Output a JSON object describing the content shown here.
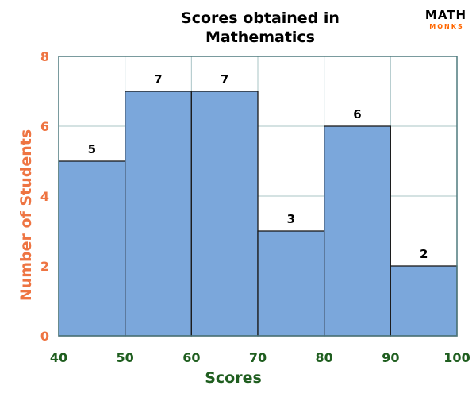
{
  "logo": {
    "main": "MATH",
    "sub": "MONKS"
  },
  "colors": {
    "bar_fill": "#7ba7db",
    "bar_stroke": "#1a1a1a",
    "grid": "#a9c4c6",
    "frame": "#4f7a7e",
    "ylabel_color": "#ee7442",
    "xlabel_color": "#1f5e1f",
    "ytick_color": "#ee7442",
    "xtick_color": "#1f5e1f"
  },
  "chart_data": {
    "type": "bar",
    "title_lines": [
      "Scores obtained in",
      "Mathematics"
    ],
    "categories": [
      "40-50",
      "50-60",
      "60-70",
      "70-80",
      "80-90",
      "90-100"
    ],
    "bin_edges": [
      40,
      50,
      60,
      70,
      80,
      90,
      100
    ],
    "values": [
      5,
      7,
      7,
      3,
      6,
      2
    ],
    "value_labels": [
      "5",
      "7",
      "7",
      "3",
      "6",
      "2"
    ],
    "xlabel": "Scores",
    "ylabel": "Number of Students",
    "xlim": [
      40,
      100
    ],
    "ylim": [
      0,
      8
    ],
    "xticks": [
      40,
      50,
      60,
      70,
      80,
      90,
      100
    ],
    "xtick_labels": [
      "40",
      "50",
      "60",
      "70",
      "80",
      "90",
      "100"
    ],
    "yticks": [
      0,
      2,
      4,
      6,
      8
    ],
    "ytick_labels": [
      "0",
      "2",
      "4",
      "6",
      "8"
    ],
    "grid": true,
    "legend": "none"
  }
}
